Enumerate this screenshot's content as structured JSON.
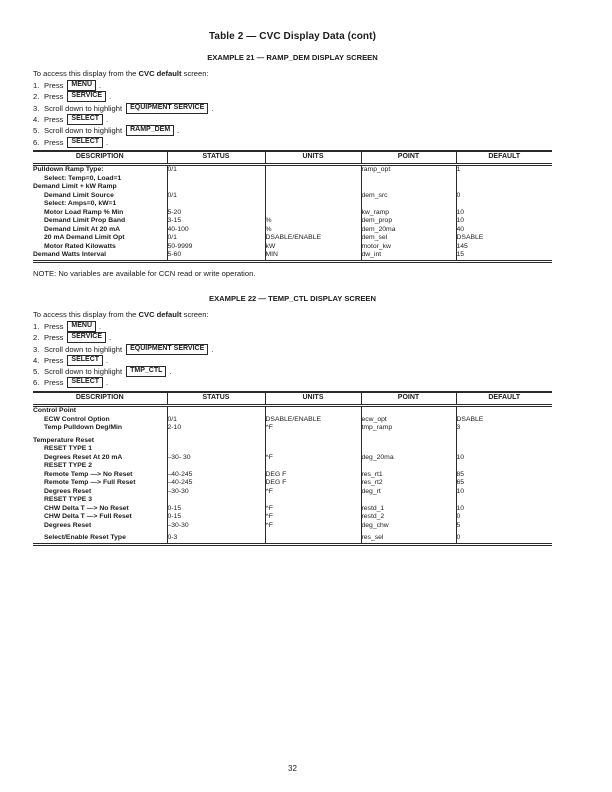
{
  "page": {
    "title": "Table 2 — CVC Display Data (cont)",
    "number": "32"
  },
  "note": "NOTE: No variables are available for CCN read or write operation.",
  "examples": [
    {
      "heading": "EXAMPLE 21 — RAMP_DEM DISPLAY SCREEN",
      "intro": {
        "pre": "To access this display from the ",
        "bold": "CVC default",
        "post": " screen:"
      },
      "steps": [
        {
          "num": "1.",
          "text": "Press",
          "key": "MENU",
          "tail": "."
        },
        {
          "num": "2.",
          "text": "Press",
          "key": "SERVICE",
          "tail": "."
        },
        {
          "num": "3.",
          "text": "Scroll down to highlight",
          "key": "EQUIPMENT SERVICE",
          "tail": "."
        },
        {
          "num": "4.",
          "text": "Press",
          "key": "SELECT",
          "tail": "."
        },
        {
          "num": "5.",
          "text": "Scroll down to highlight",
          "key": "RAMP_DEM",
          "tail": "."
        },
        {
          "num": "6.",
          "text": "Press",
          "key": "SELECT",
          "tail": "."
        }
      ],
      "table": {
        "headers": [
          "DESCRIPTION",
          "STATUS",
          "UNITS",
          "POINT",
          "DEFAULT"
        ],
        "rows": [
          {
            "desc": "Pulldown Ramp Type:",
            "indent": false,
            "status": "0/1",
            "units": "",
            "point": "ramp_opt",
            "default": "1"
          },
          {
            "desc": "Select: Temp=0, Load=1",
            "indent": true,
            "status": "",
            "units": "",
            "point": "",
            "default": ""
          },
          {
            "desc": "Demand Limit + kW Ramp",
            "indent": false,
            "status": "",
            "units": "",
            "point": "",
            "default": ""
          },
          {
            "desc": "Demand Limit Source",
            "indent": true,
            "status": "0/1",
            "units": "",
            "point": "dem_src",
            "default": "0"
          },
          {
            "desc": "Select: Amps=0, kW=1",
            "indent": true,
            "status": "",
            "units": "",
            "point": "",
            "default": ""
          },
          {
            "desc": "Motor Load Ramp % Min",
            "indent": true,
            "status": "5-20",
            "units": "",
            "point": "kw_ramp",
            "default": "10"
          },
          {
            "desc": "Demand Limit Prop Band",
            "indent": true,
            "status": "3-15",
            "units": "%",
            "point": "dem_prop",
            "default": "10"
          },
          {
            "desc": "Demand Limit At 20 mA",
            "indent": true,
            "status": "40-100",
            "units": "%",
            "point": "dem_20ma",
            "default": "40"
          },
          {
            "desc": "20 mA Demand Limit Opt",
            "indent": true,
            "status": "0/1",
            "units": "DSABLE/ENABLE",
            "point": "dem_sel",
            "default": "DSABLE"
          },
          {
            "desc": "Motor Rated Kilowatts",
            "indent": true,
            "status": "50-9999",
            "units": "kW",
            "point": "motor_kw",
            "default": "145"
          },
          {
            "desc": "Demand Watts Interval",
            "indent": false,
            "status": "5-60",
            "units": "MIN",
            "point": "dw_int",
            "default": "15"
          }
        ]
      }
    },
    {
      "heading": "EXAMPLE 22 — TEMP_CTL DISPLAY SCREEN",
      "intro": {
        "pre": "To access this display from the ",
        "bold": "CVC default",
        "post": " screen:"
      },
      "steps": [
        {
          "num": "1.",
          "text": "Press",
          "key": "MENU",
          "tail": "."
        },
        {
          "num": "2.",
          "text": "Press",
          "key": "SERVICE",
          "tail": "."
        },
        {
          "num": "3.",
          "text": "Scroll down to highlight",
          "key": "EQUIPMENT SERVICE",
          "tail": "."
        },
        {
          "num": "4.",
          "text": "Press",
          "key": "SELECT",
          "tail": "."
        },
        {
          "num": "5.",
          "text": "Scroll down to highlight",
          "key": "TMP_CTL",
          "tail": "."
        },
        {
          "num": "6.",
          "text": "Press",
          "key": "SELECT",
          "tail": "."
        }
      ],
      "table": {
        "headers": [
          "DESCRIPTION",
          "STATUS",
          "UNITS",
          "POINT",
          "DEFAULT"
        ],
        "rows": [
          {
            "desc": "Control Point",
            "indent": false,
            "status": "",
            "units": "",
            "point": "",
            "default": ""
          },
          {
            "desc": "ECW Control Option",
            "indent": true,
            "status": "0/1",
            "units": "DSABLE/ENABLE",
            "point": "ecw_opt",
            "default": "DSABLE"
          },
          {
            "desc": "Temp Pulldown Deg/Min",
            "indent": true,
            "status": "2-10",
            "units": "^F",
            "point": "tmp_ramp",
            "default": "3"
          },
          {
            "desc": "Temperature Reset",
            "indent": false,
            "status": "",
            "units": "",
            "point": "",
            "default": "",
            "gap": true
          },
          {
            "desc": "RESET TYPE 1",
            "indent": true,
            "status": "",
            "units": "",
            "point": "",
            "default": ""
          },
          {
            "desc": "Degrees Reset At 20 mA",
            "indent": true,
            "status": "–30- 30",
            "units": "^F",
            "point": "deg_20ma",
            "default": "10"
          },
          {
            "desc": "RESET TYPE 2",
            "indent": true,
            "status": "",
            "units": "",
            "point": "",
            "default": ""
          },
          {
            "desc": "Remote Temp —> No Reset",
            "indent": true,
            "status": "–40-245",
            "units": "DEG F",
            "point": "res_rt1",
            "default": "85"
          },
          {
            "desc": "Remote Temp —> Full Reset",
            "indent": true,
            "status": "–40-245",
            "units": "DEG F",
            "point": "res_rt2",
            "default": "65"
          },
          {
            "desc": "Degrees Reset",
            "indent": true,
            "status": "–30-30",
            "units": "^F",
            "point": "deg_rt",
            "default": "10"
          },
          {
            "desc": "RESET TYPE 3",
            "indent": true,
            "status": "",
            "units": "",
            "point": "",
            "default": ""
          },
          {
            "desc": "CHW Delta T —> No Reset",
            "indent": true,
            "status": "0-15",
            "units": "^F",
            "point": "restd_1",
            "default": "10"
          },
          {
            "desc": "CHW Delta T —> Full Reset",
            "indent": true,
            "status": "0-15",
            "units": "^F",
            "point": "restd_2",
            "default": "0"
          },
          {
            "desc": "Degrees Reset",
            "indent": true,
            "status": "–30-30",
            "units": "^F",
            "point": "deg_chw",
            "default": "5"
          },
          {
            "desc": "Select/Enable Reset Type",
            "indent": true,
            "status": "0-3",
            "units": "",
            "point": "res_sel",
            "default": "0",
            "gap": true
          }
        ]
      }
    }
  ]
}
